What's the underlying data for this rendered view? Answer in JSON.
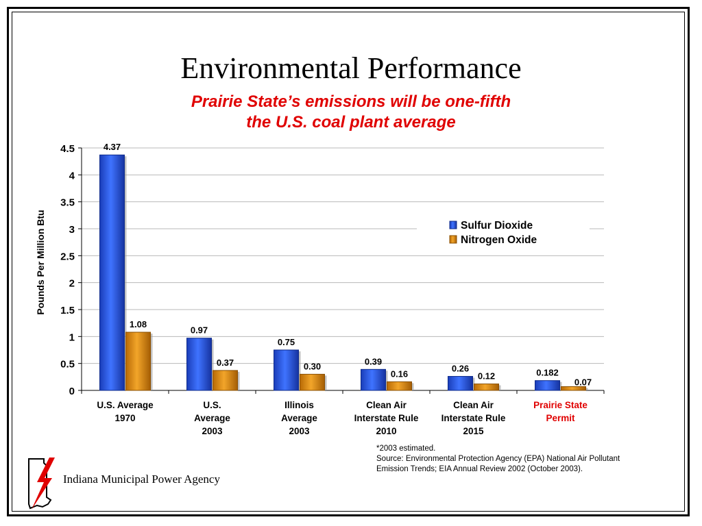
{
  "slide": {
    "title": "Environmental Performance",
    "subtitle": "Prairie State’s emissions will be one-fifth the U.S. coal plant average",
    "footnote": {
      "line1": "*2003 estimated.",
      "line2": "Source:  Environmental Protection Agency (EPA) National Air Pollutant Emission Trends; EIA Annual Review 2002 (October 2003)."
    },
    "organization": "Indiana Municipal Power Agency",
    "logo_icon": "indiana-lightning-logo-icon"
  },
  "chart_data": {
    "type": "bar",
    "title": "",
    "xlabel": "",
    "ylabel": "Pounds Per Million Btu",
    "ylim": [
      0,
      4.5
    ],
    "yticks": [
      "0",
      "0.5",
      "1",
      "1.5",
      "2",
      "2.5",
      "3",
      "3.5",
      "4",
      "4.5"
    ],
    "grid": true,
    "legend_position": "right",
    "categories": [
      [
        "U.S. Average",
        "1970"
      ],
      [
        "U.S.",
        "Average",
        "2003"
      ],
      [
        "Illinois",
        "Average",
        "2003"
      ],
      [
        "Clean Air",
        "Interstate Rule",
        "2010"
      ],
      [
        "Clean Air",
        "Interstate Rule",
        "2015"
      ],
      [
        "Prairie State",
        "Permit"
      ]
    ],
    "highlight_category_index": 5,
    "highlight_color": "#e00000",
    "series": [
      {
        "name": "Sulfur Dioxide",
        "color": "#1f4fe0",
        "values": [
          4.37,
          0.97,
          0.75,
          0.39,
          0.26,
          0.182
        ],
        "labels": [
          "4.37",
          "0.97",
          "0.75",
          "0.39",
          "0.26",
          "0.182"
        ]
      },
      {
        "name": "Nitrogen Oxide",
        "color": "#d98a0c",
        "values": [
          1.08,
          0.37,
          0.3,
          0.16,
          0.12,
          0.07
        ],
        "labels": [
          "1.08",
          "0.37",
          "0.30",
          "0.16",
          "0.12",
          "0.07"
        ]
      }
    ]
  }
}
